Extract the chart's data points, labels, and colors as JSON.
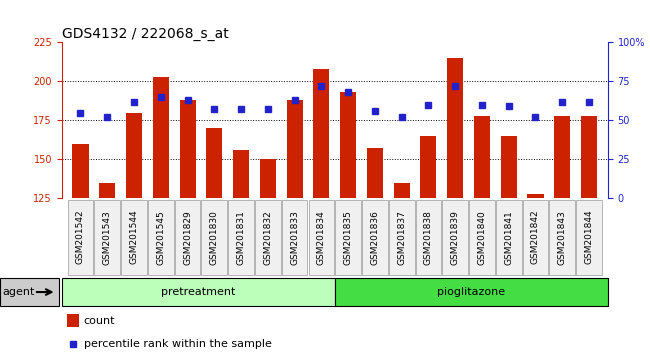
{
  "title": "GDS4132 / 222068_s_at",
  "samples": [
    "GSM201542",
    "GSM201543",
    "GSM201544",
    "GSM201545",
    "GSM201829",
    "GSM201830",
    "GSM201831",
    "GSM201832",
    "GSM201833",
    "GSM201834",
    "GSM201835",
    "GSM201836",
    "GSM201837",
    "GSM201838",
    "GSM201839",
    "GSM201840",
    "GSM201841",
    "GSM201842",
    "GSM201843",
    "GSM201844"
  ],
  "counts": [
    160,
    135,
    180,
    203,
    188,
    170,
    156,
    150,
    188,
    208,
    193,
    157,
    135,
    165,
    215,
    178,
    165,
    128,
    178,
    178
  ],
  "percentiles": [
    55,
    52,
    62,
    65,
    63,
    57,
    57,
    57,
    63,
    72,
    68,
    56,
    52,
    60,
    72,
    60,
    59,
    52,
    62,
    62
  ],
  "bar_color": "#cc2200",
  "dot_color": "#2222cc",
  "bg_color": "#f0f0f0",
  "ylim_left": [
    125,
    225
  ],
  "ylim_right": [
    0,
    100
  ],
  "yticks_left": [
    125,
    150,
    175,
    200,
    225
  ],
  "yticks_right": [
    0,
    25,
    50,
    75,
    100
  ],
  "yticklabels_right": [
    "0",
    "25",
    "50",
    "75",
    "100%"
  ],
  "grid_values": [
    150,
    175,
    200
  ],
  "n_pretreatment": 10,
  "n_pioglitazone": 10,
  "pretreatment_color": "#bbffbb",
  "pioglitazone_color": "#44dd44",
  "agent_bg_color": "#cccccc",
  "agent_label": "agent",
  "pretreatment_label": "pretreatment",
  "pioglitazone_label": "pioglitazone",
  "legend_count_label": "count",
  "legend_pct_label": "percentile rank within the sample",
  "bar_width": 0.6,
  "title_fontsize": 10,
  "tick_fontsize": 7,
  "label_fontsize": 8,
  "sample_label_fontsize": 6.5
}
